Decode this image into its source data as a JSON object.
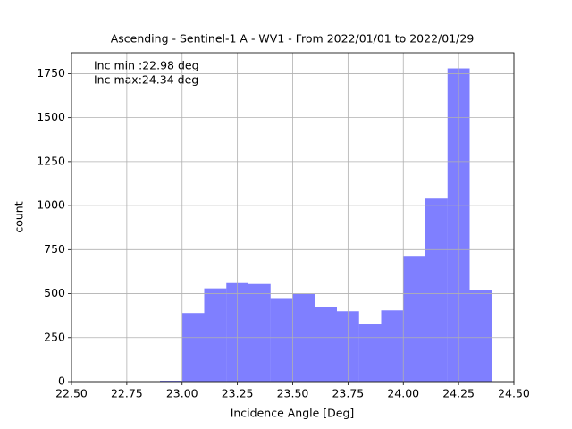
{
  "chart_data": {
    "type": "histogram",
    "title": "Ascending - Sentinel-1 A - WV1 - From 2022/01/01 to 2022/01/29",
    "x_label": "Incidence Angle [Deg]",
    "y_label": "count",
    "annotations": [
      "Inc min :22.98 deg",
      "Inc max:24.34 deg"
    ],
    "bins": [
      22.9,
      23.0,
      23.1,
      23.2,
      23.3,
      23.4,
      23.5,
      23.6,
      23.7,
      23.8,
      23.9,
      24.0,
      24.1,
      24.2,
      24.3,
      24.4
    ],
    "counts": [
      5,
      390,
      530,
      560,
      555,
      475,
      500,
      425,
      400,
      325,
      405,
      715,
      1040,
      1780,
      520
    ],
    "color": "#0000ff",
    "alpha": 0.5,
    "grid": true,
    "xlim": [
      22.5,
      24.5
    ],
    "xticks": [
      {
        "value": 22.5,
        "label": "22.50"
      },
      {
        "value": 22.75,
        "label": "22.75"
      },
      {
        "value": 23.0,
        "label": "23.00"
      },
      {
        "value": 23.25,
        "label": "23.25"
      },
      {
        "value": 23.5,
        "label": "23.50"
      },
      {
        "value": 23.75,
        "label": "23.75"
      },
      {
        "value": 24.0,
        "label": "24.00"
      },
      {
        "value": 24.25,
        "label": "24.25"
      },
      {
        "value": 24.5,
        "label": "24.50"
      }
    ],
    "ylim": [
      0,
      1869
    ],
    "yticks": [
      0,
      250,
      500,
      750,
      1000,
      1250,
      1500,
      1750
    ]
  }
}
